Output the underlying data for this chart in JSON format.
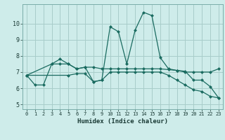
{
  "xlabel": "Humidex (Indice chaleur)",
  "background_color": "#ceecea",
  "grid_color": "#a8cdc9",
  "line_color": "#1a6b60",
  "xlim": [
    -0.5,
    23.5
  ],
  "ylim": [
    4.7,
    11.2
  ],
  "xticks": [
    0,
    1,
    2,
    3,
    4,
    5,
    6,
    7,
    8,
    9,
    10,
    11,
    12,
    13,
    14,
    15,
    16,
    17,
    18,
    19,
    20,
    21,
    22,
    23
  ],
  "yticks": [
    5,
    6,
    7,
    8,
    9,
    10
  ],
  "series1": [
    [
      0,
      6.8
    ],
    [
      1,
      6.2
    ],
    [
      2,
      6.2
    ],
    [
      3,
      7.5
    ],
    [
      4,
      7.8
    ],
    [
      5,
      7.5
    ],
    [
      6,
      7.2
    ],
    [
      7,
      7.3
    ],
    [
      8,
      6.4
    ],
    [
      9,
      6.5
    ],
    [
      10,
      9.8
    ],
    [
      11,
      9.5
    ],
    [
      12,
      7.5
    ],
    [
      13,
      9.6
    ],
    [
      14,
      10.7
    ],
    [
      15,
      10.5
    ],
    [
      16,
      7.9
    ],
    [
      17,
      7.2
    ],
    [
      18,
      7.1
    ],
    [
      19,
      7.05
    ],
    [
      20,
      6.5
    ],
    [
      21,
      6.5
    ],
    [
      22,
      6.1
    ],
    [
      23,
      5.4
    ]
  ],
  "series2": [
    [
      0,
      6.8
    ],
    [
      3,
      7.5
    ],
    [
      4,
      7.5
    ],
    [
      5,
      7.5
    ],
    [
      6,
      7.2
    ],
    [
      7,
      7.3
    ],
    [
      8,
      7.3
    ],
    [
      9,
      7.2
    ],
    [
      10,
      7.2
    ],
    [
      11,
      7.2
    ],
    [
      12,
      7.2
    ],
    [
      13,
      7.2
    ],
    [
      14,
      7.2
    ],
    [
      15,
      7.2
    ],
    [
      16,
      7.2
    ],
    [
      17,
      7.15
    ],
    [
      18,
      7.1
    ],
    [
      19,
      7.0
    ],
    [
      20,
      7.0
    ],
    [
      21,
      7.0
    ],
    [
      22,
      7.0
    ],
    [
      23,
      7.2
    ]
  ],
  "series3": [
    [
      0,
      6.8
    ],
    [
      5,
      6.8
    ],
    [
      6,
      6.9
    ],
    [
      7,
      6.9
    ],
    [
      8,
      6.4
    ],
    [
      9,
      6.5
    ],
    [
      10,
      7.0
    ],
    [
      11,
      7.0
    ],
    [
      12,
      7.0
    ],
    [
      13,
      7.0
    ],
    [
      14,
      7.0
    ],
    [
      15,
      7.0
    ],
    [
      16,
      7.0
    ],
    [
      17,
      6.8
    ],
    [
      18,
      6.5
    ],
    [
      19,
      6.2
    ],
    [
      20,
      5.9
    ],
    [
      21,
      5.8
    ],
    [
      22,
      5.5
    ],
    [
      23,
      5.4
    ]
  ]
}
